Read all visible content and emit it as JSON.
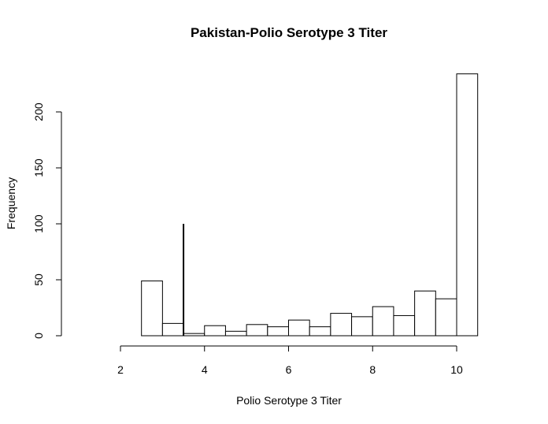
{
  "chart_data": {
    "type": "bar",
    "title": "Pakistan-Polio Serotype 3 Titer",
    "xlabel": "Polio Serotype 3 Titer",
    "ylabel": "Frequency",
    "xlim": [
      0.85,
      10.9
    ],
    "ylim": [
      0,
      240
    ],
    "x_axis_range": [
      2,
      10
    ],
    "y_axis_range": [
      0,
      200
    ],
    "x_ticks": [
      2,
      4,
      6,
      8,
      10
    ],
    "y_ticks": [
      0,
      50,
      100,
      150,
      200
    ],
    "bin_width": 0.5,
    "bins": [
      {
        "start": 2.5,
        "end": 3.0,
        "value": 49
      },
      {
        "start": 3.0,
        "end": 3.5,
        "value": 11
      },
      {
        "start": 3.5,
        "end": 4.0,
        "value": 2
      },
      {
        "start": 4.0,
        "end": 4.5,
        "value": 9
      },
      {
        "start": 4.5,
        "end": 5.0,
        "value": 4
      },
      {
        "start": 5.0,
        "end": 5.5,
        "value": 10
      },
      {
        "start": 5.5,
        "end": 6.0,
        "value": 8
      },
      {
        "start": 6.0,
        "end": 6.5,
        "value": 14
      },
      {
        "start": 6.5,
        "end": 7.0,
        "value": 8
      },
      {
        "start": 7.0,
        "end": 7.5,
        "value": 20
      },
      {
        "start": 7.5,
        "end": 8.0,
        "value": 17
      },
      {
        "start": 8.0,
        "end": 8.5,
        "value": 26
      },
      {
        "start": 8.5,
        "end": 9.0,
        "value": 18
      },
      {
        "start": 9.0,
        "end": 9.5,
        "value": 40
      },
      {
        "start": 9.5,
        "end": 10.0,
        "value": 33
      },
      {
        "start": 10.0,
        "end": 10.5,
        "value": 234
      }
    ],
    "reference_line": {
      "x": 3.5,
      "y_from": 0,
      "y_to": 100
    },
    "grid": false,
    "legend": "none"
  }
}
